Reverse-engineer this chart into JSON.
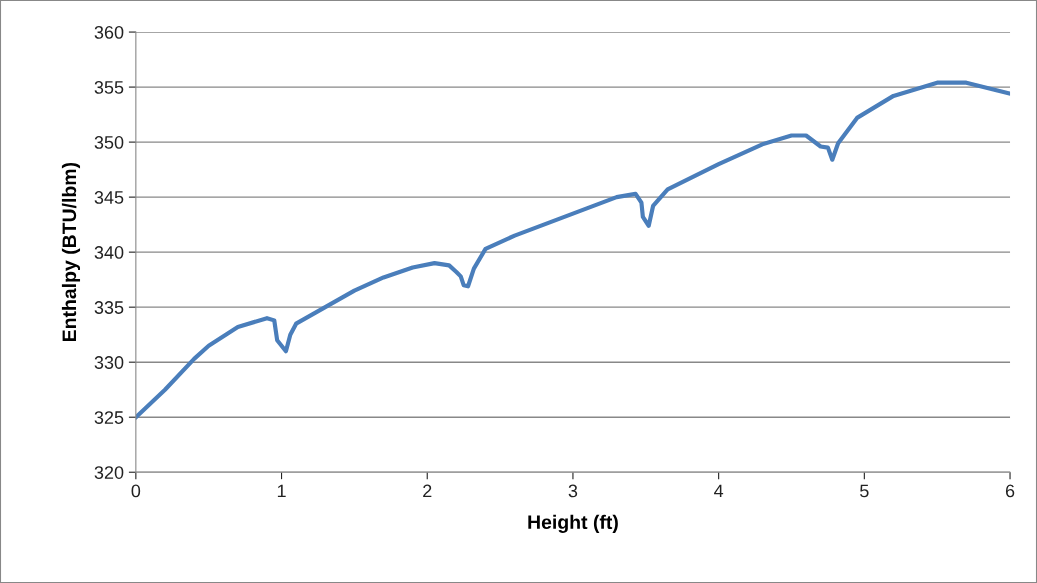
{
  "chart_data": {
    "type": "line",
    "xlabel": "Height (ft)",
    "ylabel": "Enthalpy (BTU/lbm)",
    "xlim": [
      0,
      6
    ],
    "xticks": [
      0,
      1,
      2,
      3,
      4,
      5,
      6
    ],
    "ylim": [
      320,
      360
    ],
    "yticks": [
      320,
      325,
      330,
      335,
      340,
      345,
      350,
      355,
      360
    ],
    "grid": "y",
    "legend": false,
    "marker": "none",
    "line_style": "solid",
    "series": [
      {
        "color": "#4a7ebb",
        "x": [
          0,
          0.2,
          0.4,
          0.5,
          0.7,
          0.9,
          0.95,
          0.97,
          1.0,
          1.03,
          1.06,
          1.1,
          1.3,
          1.5,
          1.7,
          1.9,
          2.05,
          2.15,
          2.2,
          2.23,
          2.25,
          2.28,
          2.32,
          2.4,
          2.6,
          3.0,
          3.3,
          3.43,
          3.47,
          3.48,
          3.52,
          3.55,
          3.65,
          4.0,
          4.3,
          4.5,
          4.6,
          4.7,
          4.75,
          4.78,
          4.82,
          4.95,
          5.2,
          5.5,
          5.7,
          6.0
        ],
        "values": [
          325,
          327.5,
          330.3,
          331.5,
          333.2,
          334,
          333.8,
          332,
          331.5,
          331,
          332.5,
          333.5,
          335,
          336.5,
          337.7,
          338.6,
          339,
          338.8,
          338.2,
          337.8,
          337,
          336.9,
          338.5,
          340.3,
          341.5,
          343.5,
          345,
          345.3,
          344.5,
          343.2,
          342.4,
          344.2,
          345.7,
          348,
          349.8,
          350.6,
          350.6,
          349.6,
          349.5,
          348.4,
          349.9,
          352.2,
          354.2,
          355.4,
          355.4,
          354.4
        ]
      }
    ]
  }
}
